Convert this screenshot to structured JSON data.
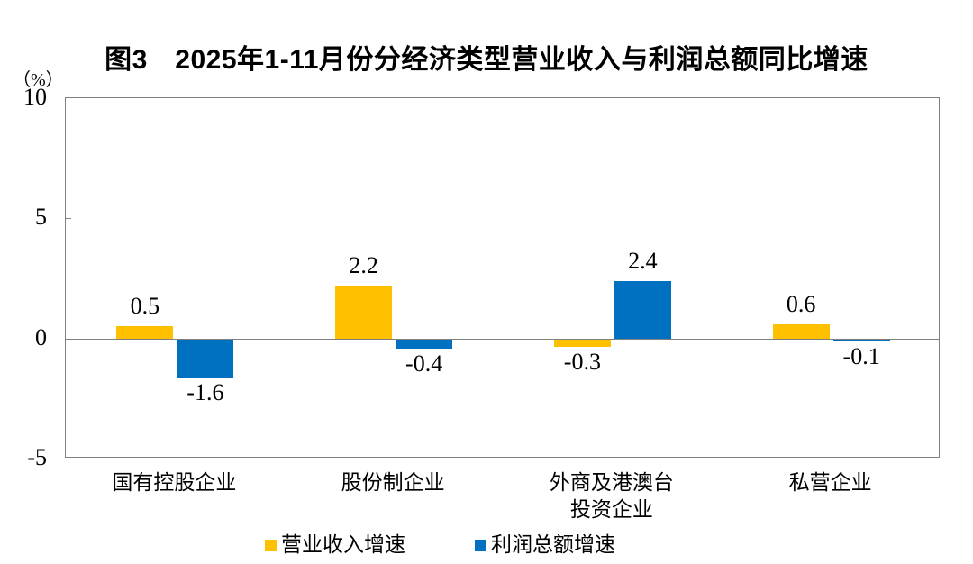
{
  "chart_data": {
    "type": "bar",
    "title": "图3　2025年1-11月份分经济类型营业收入与利润总额同比增速",
    "unit_label": "（%）",
    "categories": [
      "国有控股企业",
      "股份制企业",
      "外商及港澳台投资企业",
      "私营企业"
    ],
    "x_display_labels": [
      "国有控股企业",
      "股份制企业",
      "外商及港澳台\n投资企业",
      "私营企业"
    ],
    "series": [
      {
        "name": "营业收入增速",
        "color": "#FFC000",
        "values": [
          0.5,
          2.2,
          -0.3,
          0.6
        ]
      },
      {
        "name": "利润总额增速",
        "color": "#0070C0",
        "values": [
          -1.6,
          -0.4,
          2.4,
          -0.1
        ]
      }
    ],
    "ylim": [
      -5,
      10
    ],
    "yticks": [
      10,
      5,
      0,
      -5
    ],
    "grid": false,
    "legend_position": "bottom",
    "axis_color": "#808080",
    "text_color": "#000000"
  }
}
